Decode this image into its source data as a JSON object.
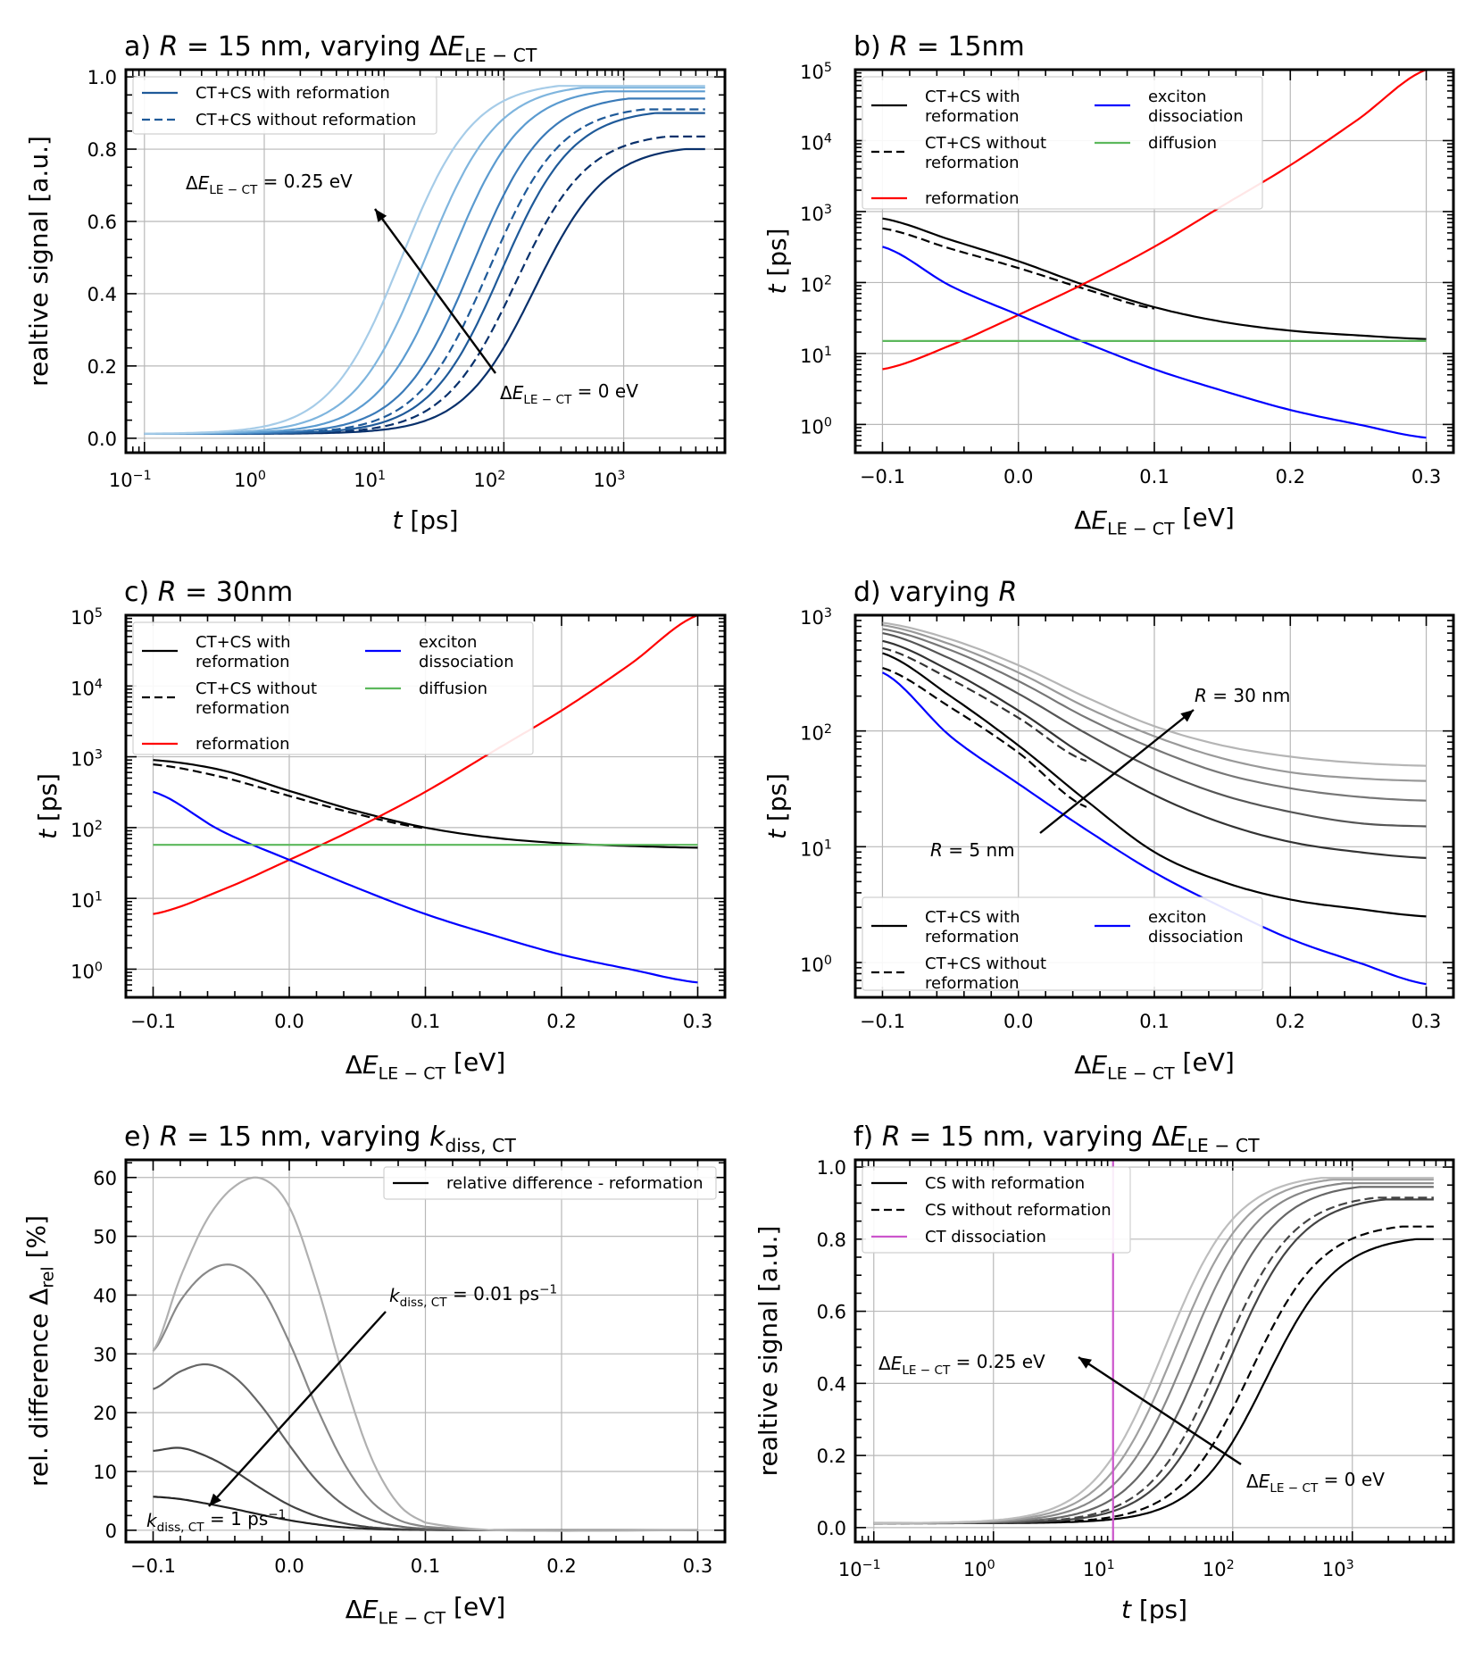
{
  "panels": [
    {
      "id": "a",
      "title": "a) R = 15 nm, varying ΔE_LE−CT",
      "title_parts": [
        "a) ",
        "R",
        " = 15 nm, varying Δ",
        "E",
        "LE − CT"
      ],
      "xlabel_parts": [
        "t",
        " [ps]"
      ],
      "ylabel": "realtive signal [a.u.]",
      "legend": [
        "CT+CS with reformation",
        "CT+CS without reformation"
      ],
      "annotations": [
        {
          "parts": [
            "Δ",
            "E",
            "LE − CT",
            " = 0.25 eV"
          ]
        },
        {
          "parts": [
            "Δ",
            "E",
            "LE − CT",
            " = 0 eV"
          ]
        }
      ],
      "xticks": [
        "10",
        "10",
        "10",
        "10",
        "10"
      ],
      "xtick_exp": [
        "−1",
        "0",
        "1",
        "2",
        "3"
      ],
      "yticks": [
        "0.0",
        "0.2",
        "0.4",
        "0.6",
        "0.8",
        "1.0"
      ]
    },
    {
      "id": "b",
      "title_parts": [
        "b) ",
        "R",
        " = 15nm"
      ],
      "xlabel_parts": [
        "Δ",
        "E",
        "LE − CT",
        " [eV]"
      ],
      "ylabel_parts": [
        "t",
        " [ps]"
      ],
      "legend": [
        {
          "l1": "CT+CS with",
          "l2": "reformation"
        },
        {
          "l1": "CT+CS without",
          "l2": "reformation"
        },
        {
          "l1": "reformation",
          "l2": ""
        },
        {
          "l1": "exciton",
          "l2": "dissociation"
        },
        {
          "l1": "diffusion",
          "l2": ""
        }
      ],
      "xticks": [
        "−0.1",
        "0.0",
        "0.1",
        "0.2",
        "0.3"
      ],
      "yticks": [
        "10",
        "10",
        "10",
        "10",
        "10",
        "10"
      ],
      "ytick_exp": [
        "0",
        "1",
        "2",
        "3",
        "4",
        "5"
      ]
    },
    {
      "id": "c",
      "title_parts": [
        "c) ",
        "R",
        " = 30nm"
      ],
      "xlabel_parts": [
        "Δ",
        "E",
        "LE − CT",
        " [eV]"
      ],
      "ylabel_parts": [
        "t",
        " [ps]"
      ],
      "legend": [
        {
          "l1": "CT+CS with",
          "l2": "reformation"
        },
        {
          "l1": "CT+CS without",
          "l2": "reformation"
        },
        {
          "l1": "reformation",
          "l2": ""
        },
        {
          "l1": "exciton",
          "l2": "dissociation"
        },
        {
          "l1": "diffusion",
          "l2": ""
        }
      ],
      "xticks": [
        "−0.1",
        "0.0",
        "0.1",
        "0.2",
        "0.3"
      ],
      "yticks": [
        "10",
        "10",
        "10",
        "10",
        "10",
        "10"
      ],
      "ytick_exp": [
        "0",
        "1",
        "2",
        "3",
        "4",
        "5"
      ]
    },
    {
      "id": "d",
      "title_parts": [
        "d) varying ",
        "R"
      ],
      "xlabel_parts": [
        "Δ",
        "E",
        "LE − CT",
        " [eV]"
      ],
      "ylabel_parts": [
        "t",
        " [ps]"
      ],
      "legend": [
        {
          "l1": "CT+CS with",
          "l2": "reformation"
        },
        {
          "l1": "CT+CS without",
          "l2": "reformation"
        },
        {
          "l1": "exciton",
          "l2": "dissociation"
        }
      ],
      "annotations": [
        {
          "parts": [
            "R",
            " = 30 nm"
          ]
        },
        {
          "parts": [
            "R",
            " = 5 nm"
          ]
        }
      ],
      "xticks": [
        "−0.1",
        "0.0",
        "0.1",
        "0.2",
        "0.3"
      ],
      "yticks": [
        "10",
        "10",
        "10",
        "10"
      ],
      "ytick_exp": [
        "0",
        "1",
        "2",
        "3"
      ]
    },
    {
      "id": "e",
      "title_parts": [
        "e) ",
        "R",
        " = 15 nm, varying ",
        "k",
        "diss, CT"
      ],
      "xlabel_parts": [
        "Δ",
        "E",
        "LE − CT",
        " [eV]"
      ],
      "ylabel_parts": [
        "rel. difference Δ",
        "rel",
        " [%]"
      ],
      "legend": [
        "relative difference - reformation"
      ],
      "annotations": [
        {
          "parts": [
            "k",
            "diss, CT",
            " = 0.01 ps",
            "−1"
          ]
        },
        {
          "parts": [
            "k",
            "diss, CT",
            " = 1 ps",
            "−1"
          ]
        }
      ],
      "xticks": [
        "−0.1",
        "0.0",
        "0.1",
        "0.2",
        "0.3"
      ],
      "yticks": [
        "0",
        "10",
        "20",
        "30",
        "40",
        "50",
        "60"
      ]
    },
    {
      "id": "f",
      "title_parts": [
        "f) ",
        "R",
        " = 15 nm, varying Δ",
        "E",
        "LE − CT"
      ],
      "xlabel_parts": [
        "t",
        " [ps]"
      ],
      "ylabel": "realtive signal [a.u.]",
      "legend": [
        "CS with reformation",
        "CS without reformation",
        "CT dissociation"
      ],
      "annotations": [
        {
          "parts": [
            "Δ",
            "E",
            "LE − CT",
            " = 0.25 eV"
          ]
        },
        {
          "parts": [
            "Δ",
            "E",
            "LE − CT",
            " = 0 eV"
          ]
        }
      ],
      "xticks": [
        "10",
        "10",
        "10",
        "10",
        "10"
      ],
      "xtick_exp": [
        "−1",
        "0",
        "1",
        "2",
        "3"
      ],
      "yticks": [
        "0.0",
        "0.2",
        "0.4",
        "0.6",
        "0.8",
        "1.0"
      ]
    }
  ],
  "chart_data": [
    {
      "panel": "a",
      "type": "line",
      "x_scale": "log",
      "xlim": [
        0.07,
        7000
      ],
      "ylim": [
        -0.04,
        1.02
      ],
      "series": [
        {
          "style": "solid",
          "color": "#08306b",
          "plateau": 0.8,
          "t50": 180
        },
        {
          "style": "dashed",
          "color": "#08306b",
          "plateau": 0.835,
          "t50": 125
        },
        {
          "style": "solid",
          "color": "#1f5a99",
          "plateau": 0.9,
          "t50": 95
        },
        {
          "style": "dashed",
          "color": "#1f5a99",
          "plateau": 0.91,
          "t50": 75
        },
        {
          "style": "solid",
          "color": "#3a7ab8",
          "plateau": 0.94,
          "t50": 55
        },
        {
          "style": "solid",
          "color": "#5b9bd0",
          "plateau": 0.96,
          "t50": 35
        },
        {
          "style": "solid",
          "color": "#7fb5de",
          "plateau": 0.97,
          "t50": 22
        },
        {
          "style": "solid",
          "color": "#a6cce8",
          "plateau": 0.975,
          "t50": 14
        }
      ]
    },
    {
      "panel": "b",
      "type": "line",
      "y_scale": "log",
      "xlim": [
        -0.12,
        0.32
      ],
      "ylim": [
        0.4,
        100000
      ],
      "series": [
        {
          "name": "CT+CS with reformation",
          "style": "solid",
          "color": "#000000",
          "x": [
            -0.1,
            -0.05,
            0.0,
            0.05,
            0.1,
            0.15,
            0.2,
            0.25,
            0.3
          ],
          "y": [
            800,
            400,
            200,
            90,
            45,
            28,
            21,
            18,
            16
          ]
        },
        {
          "name": "CT+CS without reformation",
          "style": "dashed",
          "color": "#000000",
          "x": [
            -0.1,
            -0.05,
            0.0,
            0.05,
            0.1
          ],
          "y": [
            580,
            300,
            160,
            80,
            43
          ]
        },
        {
          "name": "reformation",
          "style": "solid",
          "color": "#ff0000",
          "x": [
            -0.1,
            -0.05,
            0.0,
            0.05,
            0.1,
            0.15,
            0.2,
            0.25,
            0.3
          ],
          "y": [
            6,
            13,
            35,
            100,
            320,
            1200,
            4500,
            20000,
            100000
          ]
        },
        {
          "name": "exciton dissociation",
          "style": "solid",
          "color": "#0000ff",
          "x": [
            -0.1,
            -0.05,
            0.0,
            0.05,
            0.1,
            0.15,
            0.2,
            0.25,
            0.3
          ],
          "y": [
            320,
            90,
            35,
            14,
            6,
            3,
            1.6,
            1.0,
            0.65
          ]
        },
        {
          "name": "diffusion",
          "style": "solid",
          "color": "#5cb85c",
          "x": [
            -0.1,
            0.3
          ],
          "y": [
            15,
            15
          ]
        }
      ]
    },
    {
      "panel": "c",
      "type": "line",
      "y_scale": "log",
      "xlim": [
        -0.12,
        0.32
      ],
      "ylim": [
        0.4,
        100000
      ],
      "series": [
        {
          "name": "CT+CS with reformation",
          "style": "solid",
          "color": "#000000",
          "x": [
            -0.1,
            -0.05,
            0.0,
            0.05,
            0.1,
            0.15,
            0.2,
            0.25,
            0.3
          ],
          "y": [
            900,
            650,
            330,
            170,
            100,
            72,
            60,
            55,
            52
          ]
        },
        {
          "name": "CT+CS without reformation",
          "style": "dashed",
          "color": "#000000",
          "x": [
            -0.1,
            -0.05,
            0.0,
            0.05,
            0.1
          ],
          "y": [
            780,
            520,
            280,
            155,
            98
          ]
        },
        {
          "name": "reformation",
          "style": "solid",
          "color": "#ff0000",
          "x": [
            -0.1,
            -0.05,
            0.0,
            0.05,
            0.1,
            0.15,
            0.2,
            0.25,
            0.3
          ],
          "y": [
            6,
            13,
            35,
            100,
            320,
            1200,
            4500,
            20000,
            100000
          ]
        },
        {
          "name": "exciton dissociation",
          "style": "solid",
          "color": "#0000ff",
          "x": [
            -0.1,
            -0.05,
            0.0,
            0.05,
            0.1,
            0.15,
            0.2,
            0.25,
            0.3
          ],
          "y": [
            320,
            90,
            35,
            14,
            6,
            3,
            1.6,
            1.0,
            0.65
          ]
        },
        {
          "name": "diffusion",
          "style": "solid",
          "color": "#5cb85c",
          "x": [
            -0.1,
            0.3
          ],
          "y": [
            57,
            57
          ]
        }
      ]
    },
    {
      "panel": "d",
      "type": "line",
      "y_scale": "log",
      "xlim": [
        -0.12,
        0.32
      ],
      "ylim": [
        0.5,
        1000
      ],
      "series": [
        {
          "style": "solid",
          "color": "#000000",
          "x": [
            -0.1,
            -0.05,
            0.0,
            0.05,
            0.1,
            0.15,
            0.2,
            0.25,
            0.3
          ],
          "y": [
            470,
            200,
            75,
            25,
            9,
            5,
            3.5,
            2.9,
            2.5
          ]
        },
        {
          "style": "dashed",
          "color": "#000000",
          "x": [
            -0.1,
            -0.05,
            0.0,
            0.05
          ],
          "y": [
            350,
            160,
            65,
            22
          ]
        },
        {
          "style": "solid",
          "color": "#333333",
          "x": [
            -0.1,
            -0.05,
            0.0,
            0.05,
            0.1,
            0.15,
            0.2,
            0.25,
            0.3
          ],
          "y": [
            600,
            330,
            150,
            60,
            28,
            16,
            11,
            9,
            8
          ]
        },
        {
          "style": "dashed",
          "color": "#333333",
          "x": [
            -0.1,
            -0.05,
            0.0,
            0.05
          ],
          "y": [
            520,
            280,
            130,
            55
          ]
        },
        {
          "style": "solid",
          "color": "#555555",
          "x": [
            -0.1,
            -0.05,
            0.0,
            0.05,
            0.1,
            0.15,
            0.2,
            0.25,
            0.3
          ],
          "y": [
            700,
            420,
            210,
            95,
            47,
            28,
            20,
            16,
            15
          ]
        },
        {
          "style": "solid",
          "color": "#777777",
          "x": [
            -0.1,
            -0.05,
            0.0,
            0.05,
            0.1,
            0.15,
            0.2,
            0.25,
            0.3
          ],
          "y": [
            760,
            500,
            270,
            130,
            70,
            43,
            32,
            27,
            25
          ]
        },
        {
          "style": "solid",
          "color": "#999999",
          "x": [
            -0.1,
            -0.05,
            0.0,
            0.05,
            0.1,
            0.15,
            0.2,
            0.25,
            0.3
          ],
          "y": [
            820,
            560,
            320,
            160,
            90,
            58,
            44,
            39,
            37
          ]
        },
        {
          "style": "solid",
          "color": "#b5b5b5",
          "x": [
            -0.1,
            -0.05,
            0.0,
            0.05,
            0.1,
            0.15,
            0.2,
            0.25,
            0.3
          ],
          "y": [
            860,
            620,
            370,
            195,
            110,
            75,
            60,
            53,
            50
          ]
        },
        {
          "name": "exciton dissociation",
          "style": "solid",
          "color": "#0000ff",
          "x": [
            -0.1,
            -0.05,
            0.0,
            0.05,
            0.1,
            0.15,
            0.2,
            0.25,
            0.3
          ],
          "y": [
            320,
            90,
            35,
            14,
            6,
            3,
            1.6,
            1.0,
            0.65
          ]
        }
      ]
    },
    {
      "panel": "e",
      "type": "line",
      "xlim": [
        -0.12,
        0.32
      ],
      "ylim": [
        -2,
        63
      ],
      "series": [
        {
          "color": "#222222",
          "x": [
            -0.1,
            -0.08,
            -0.06,
            -0.04,
            -0.02,
            0.0,
            0.02,
            0.04,
            0.06,
            0.08,
            0.1,
            0.15,
            0.3
          ],
          "y": [
            5.7,
            5.3,
            4.5,
            3.6,
            2.6,
            1.7,
            1.0,
            0.5,
            0.25,
            0.1,
            0.05,
            0,
            0
          ]
        },
        {
          "color": "#444444",
          "x": [
            -0.1,
            -0.08,
            -0.06,
            -0.04,
            -0.02,
            0.0,
            0.02,
            0.04,
            0.06,
            0.08,
            0.1,
            0.15,
            0.3
          ],
          "y": [
            13.5,
            14,
            12.5,
            10,
            7,
            4.3,
            2.4,
            1.2,
            0.5,
            0.2,
            0.08,
            0,
            0
          ]
        },
        {
          "color": "#666666",
          "x": [
            -0.1,
            -0.08,
            -0.06,
            -0.04,
            -0.02,
            0.0,
            0.02,
            0.04,
            0.06,
            0.08,
            0.1,
            0.15,
            0.3
          ],
          "y": [
            24,
            27,
            28.2,
            26,
            21,
            14.5,
            8.5,
            4.3,
            1.8,
            0.7,
            0.25,
            0,
            0
          ]
        },
        {
          "color": "#888888",
          "x": [
            -0.1,
            -0.08,
            -0.06,
            -0.04,
            -0.02,
            0.0,
            0.02,
            0.04,
            0.06,
            0.08,
            0.1,
            0.15,
            0.3
          ],
          "y": [
            30.5,
            39,
            44,
            45,
            41,
            32,
            21,
            11.5,
            5,
            1.8,
            0.6,
            0,
            0
          ]
        },
        {
          "color": "#b0b0b0",
          "x": [
            -0.1,
            -0.08,
            -0.06,
            -0.04,
            -0.02,
            0.0,
            0.02,
            0.04,
            0.06,
            0.08,
            0.1,
            0.15,
            0.3
          ],
          "y": [
            30.5,
            43,
            53,
            58.5,
            59.8,
            55,
            42,
            26,
            12.5,
            4.5,
            1.3,
            0,
            0
          ]
        }
      ]
    },
    {
      "panel": "f",
      "type": "line",
      "x_scale": "log",
      "xlim": [
        0.07,
        7000
      ],
      "ylim": [
        -0.04,
        1.02
      ],
      "series": [
        {
          "style": "solid",
          "color": "#000000",
          "plateau": 0.8,
          "t50": 190
        },
        {
          "style": "dashed",
          "color": "#000000",
          "plateau": 0.835,
          "t50": 140
        },
        {
          "style": "solid",
          "color": "#444444",
          "plateau": 0.91,
          "t50": 95
        },
        {
          "style": "dashed",
          "color": "#444444",
          "plateau": 0.915,
          "t50": 80
        },
        {
          "style": "solid",
          "color": "#666666",
          "plateau": 0.945,
          "t50": 58
        },
        {
          "style": "solid",
          "color": "#888888",
          "plateau": 0.955,
          "t50": 42
        },
        {
          "style": "solid",
          "color": "#a0a0a0",
          "plateau": 0.965,
          "t50": 33
        },
        {
          "style": "solid",
          "color": "#bdbdbd",
          "plateau": 0.97,
          "t50": 27
        },
        {
          "name": "CT dissociation",
          "style": "vline",
          "color": "#cc55cc",
          "x": 10
        }
      ]
    }
  ]
}
